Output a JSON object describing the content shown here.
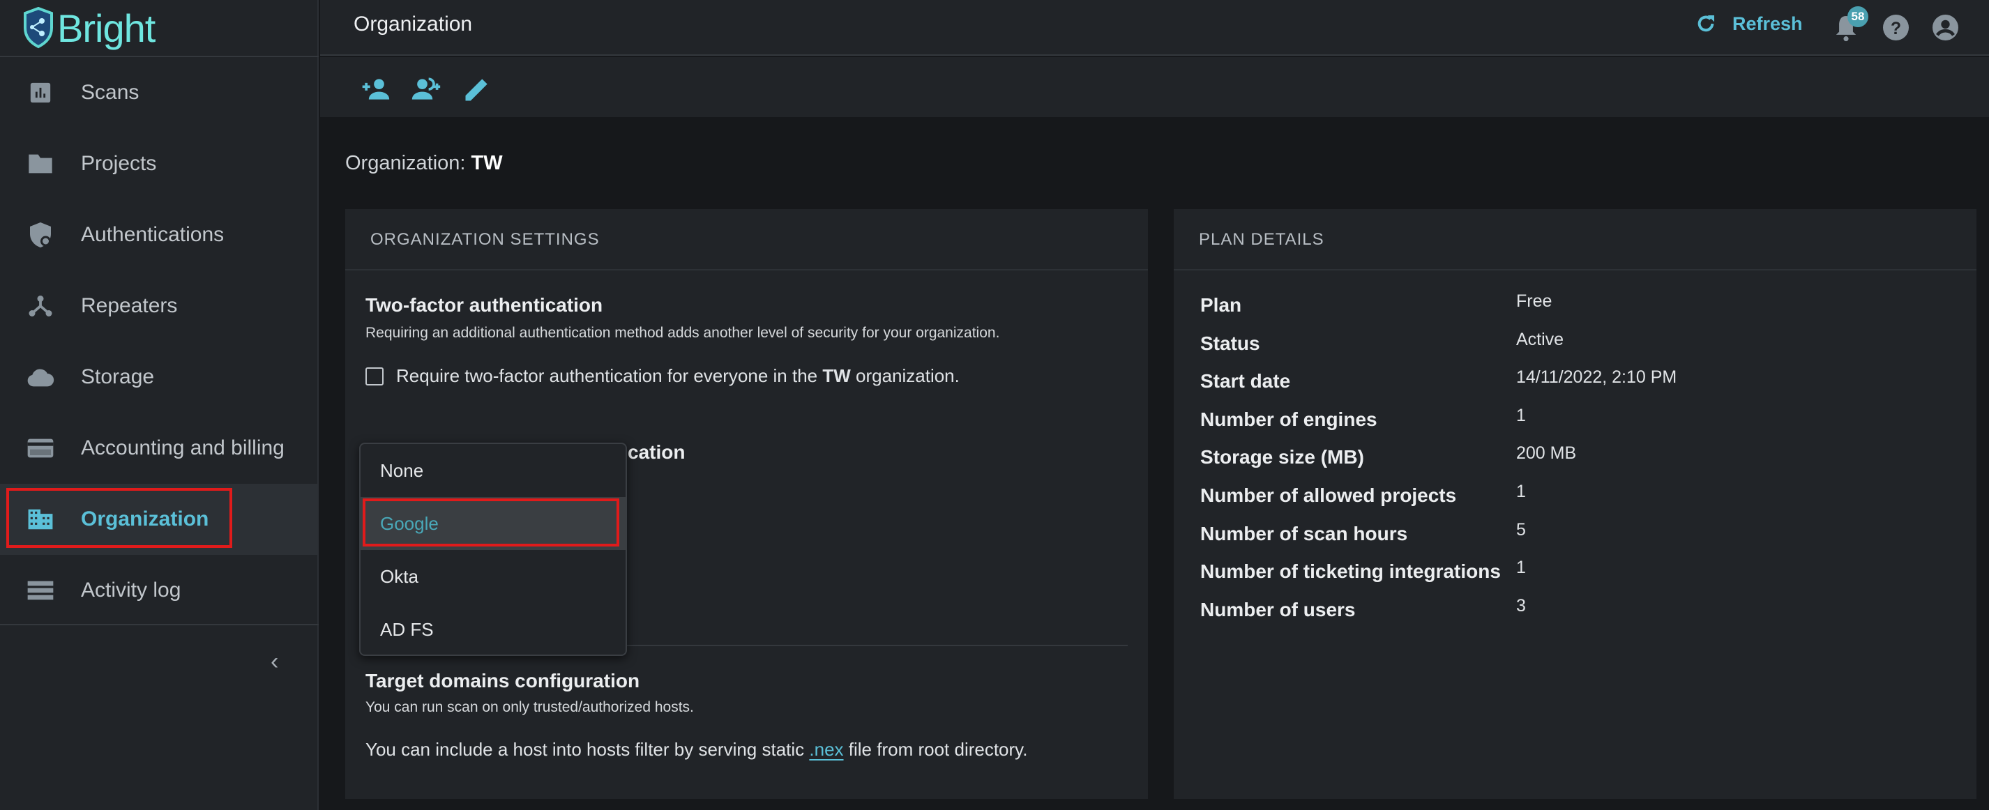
{
  "brand": {
    "name": "Bright",
    "logo_color": "#6fe6e0"
  },
  "sidebar": {
    "items": [
      {
        "label": "Scans",
        "icon": "bar-chart-icon"
      },
      {
        "label": "Projects",
        "icon": "folder-icon"
      },
      {
        "label": "Authentications",
        "icon": "shield-lock-icon"
      },
      {
        "label": "Repeaters",
        "icon": "hub-icon"
      },
      {
        "label": "Storage",
        "icon": "cloud-icon"
      },
      {
        "label": "Accounting and billing",
        "icon": "credit-card-icon"
      },
      {
        "label": "Organization",
        "icon": "building-icon",
        "active": true
      },
      {
        "label": "Activity log",
        "icon": "list-icon"
      }
    ],
    "collapse": "‹"
  },
  "header": {
    "title": "Organization",
    "refresh": "Refresh",
    "notifications": "58"
  },
  "toolbar": {
    "icons": [
      "add-user-icon",
      "add-group-icon",
      "edit-icon"
    ]
  },
  "org_line": {
    "label": "Organization: ",
    "name": "TW"
  },
  "settings": {
    "title": "ORGANIZATION SETTINGS",
    "two_factor": {
      "title": "Two-factor authentication",
      "desc": "Requiring an additional authentication method adds another level of security for your organization.",
      "checkbox_pre": "Require two-factor authentication for everyone in the ",
      "checkbox_org": "TW",
      "checkbox_post": " organization.",
      "checked": false
    },
    "sso_heading_visible": "cation",
    "dropdown": {
      "options": [
        "None",
        "Google",
        "Okta",
        "AD FS"
      ],
      "highlighted": "Google"
    },
    "target": {
      "title": "Target domains configuration",
      "desc": "You can run scan on only trusted/authorized hosts.",
      "include_pre": "You can include a host into hosts filter by serving static ",
      "include_link": ".nex",
      "include_post": " file from root directory."
    }
  },
  "plan": {
    "title": "PLAN DETAILS",
    "rows": [
      {
        "label": "Plan",
        "value": "Free"
      },
      {
        "label": "Status",
        "value": "Active"
      },
      {
        "label": "Start date",
        "value": "14/11/2022, 2:10 PM"
      },
      {
        "label": "Number of engines",
        "value": "1"
      },
      {
        "label": "Storage size (MB)",
        "value": "200 MB"
      },
      {
        "label": "Number of allowed projects",
        "value": "1"
      },
      {
        "label": "Number of scan hours",
        "value": "5"
      },
      {
        "label": "Number of ticketing integrations",
        "value": "1"
      },
      {
        "label": "Number of users",
        "value": "3"
      }
    ]
  },
  "colors": {
    "accent": "#5bc0d8",
    "highlight_box": "#e01b1b",
    "background": "#16181b",
    "panel": "#212428"
  }
}
